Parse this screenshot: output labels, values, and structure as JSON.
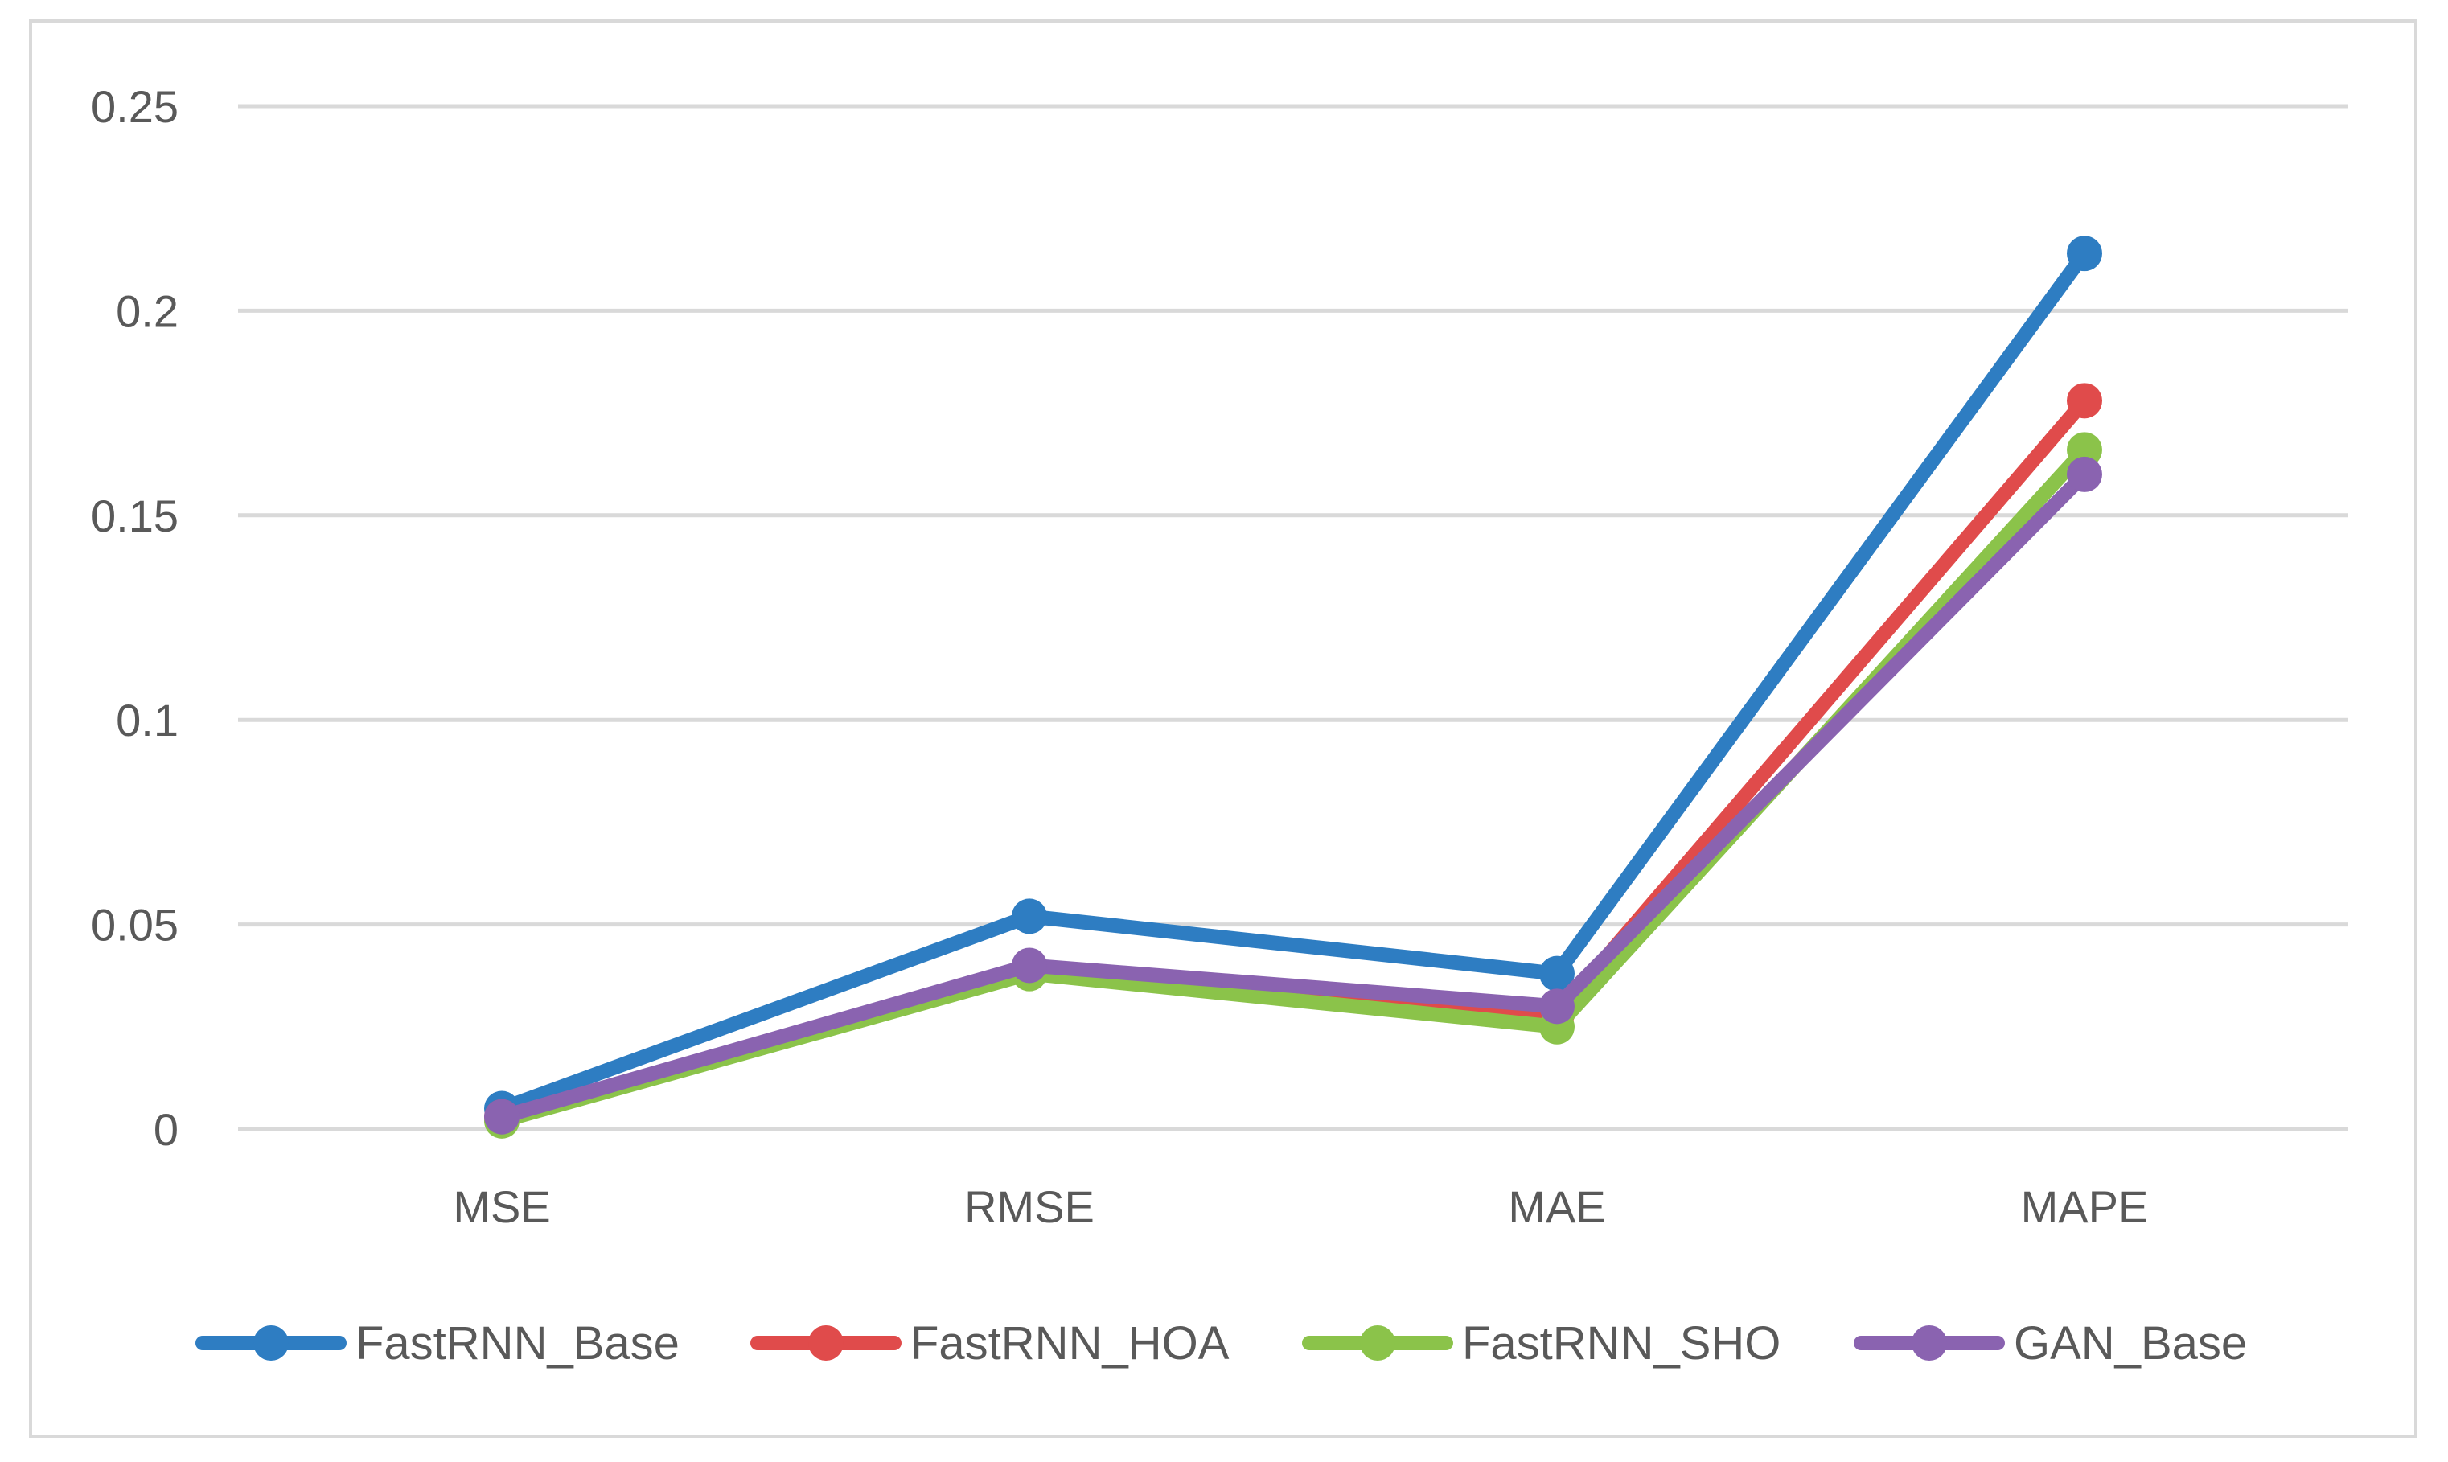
{
  "chart_data": {
    "type": "line",
    "title": "",
    "xlabel": "",
    "ylabel": "",
    "categories": [
      "MSE",
      "RMSE",
      "MAE",
      "MAPE"
    ],
    "y_ticks": [
      "0",
      "0.05",
      "0.1",
      "0.15",
      "0.2",
      "0.25"
    ],
    "ylim": [
      0,
      0.25
    ],
    "grid": true,
    "legend_position": "bottom",
    "series": [
      {
        "name": "FastRNN_Base",
        "color": "#2e7dc2",
        "values": [
          0.005,
          0.052,
          0.038,
          0.214
        ]
      },
      {
        "name": "FastRNN_HOA",
        "color": "#e04b4b",
        "values": [
          0.003,
          0.039,
          0.028,
          0.178
        ]
      },
      {
        "name": "FastRNN_SHO",
        "color": "#8bc34a",
        "values": [
          0.002,
          0.038,
          0.025,
          0.166
        ]
      },
      {
        "name": "GAN_Base",
        "color": "#8a63b0",
        "values": [
          0.003,
          0.04,
          0.03,
          0.16
        ]
      }
    ]
  }
}
